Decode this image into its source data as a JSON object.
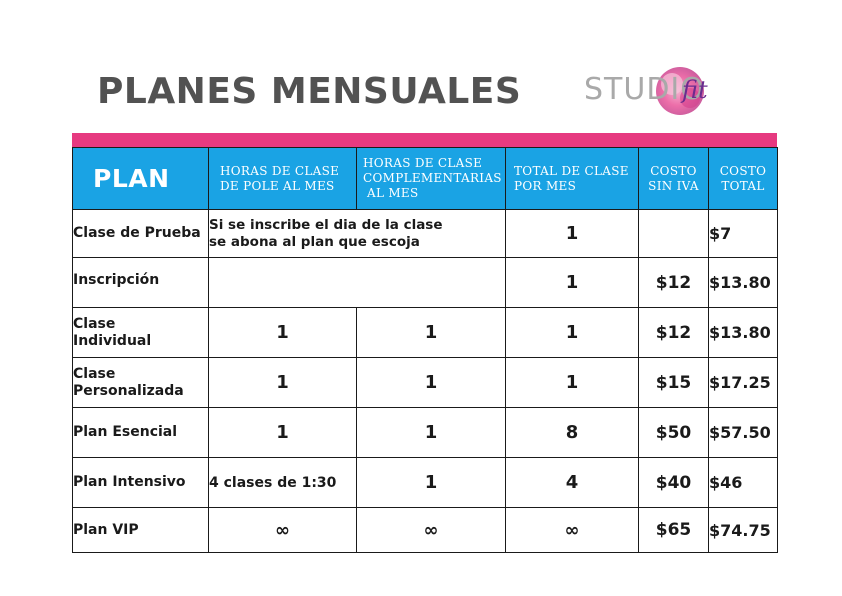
{
  "title": "PLANES MENSUALES",
  "logo": {
    "text": "STUDIO",
    "script": "fit",
    "colors": [
      "#f3a6c8",
      "#e9559a",
      "#7d3fa8"
    ]
  },
  "colors": {
    "accent_bar": "#e63a80",
    "header_bg": "#1aa3e4",
    "header_text": "#ffffff",
    "title": "#525252"
  },
  "table": {
    "headers": {
      "plan": "PLAN",
      "horas_pole": [
        "HORAS DE CLASE",
        "DE POLE AL MES"
      ],
      "horas_comp": [
        "HORAS DE CLASE",
        "COMPLEMENTARIAS",
        "AL MES"
      ],
      "total": [
        "TOTAL DE CLASE",
        "POR MES"
      ],
      "costo": [
        "COSTO",
        "SIN IVA"
      ],
      "costo_total": [
        "COSTO",
        "TOTAL"
      ]
    },
    "rows": [
      {
        "plan": [
          "Clase de Prueba"
        ],
        "note": [
          "Si se inscribe el dia de la clase",
          "se abona al plan que escoja"
        ],
        "total": "1",
        "costo": "",
        "costo_total": "$7"
      },
      {
        "plan": [
          "Inscripción"
        ],
        "horas": "",
        "total": "1",
        "costo": "$12",
        "costo_total": "$13.80"
      },
      {
        "plan": [
          "Clase",
          "Individual"
        ],
        "pole": "1",
        "comp": "1",
        "total": "1",
        "costo": "$12",
        "costo_total": "$13.80"
      },
      {
        "plan": [
          "Clase",
          "Personalizada"
        ],
        "pole": "1",
        "comp": "1",
        "total": "1",
        "costo": "$15",
        "costo_total": "$17.25"
      },
      {
        "plan": [
          "Plan Esencial"
        ],
        "pole": "1",
        "comp": "1",
        "total": "8",
        "costo": "$50",
        "costo_total": "$57.50"
      },
      {
        "plan": [
          "Plan Intensivo"
        ],
        "pole": "4 clases de 1:30",
        "comp": "1",
        "total": "4",
        "costo": "$40",
        "costo_total": "$46"
      },
      {
        "plan": [
          "Plan VIP"
        ],
        "pole": "∞",
        "comp": "∞",
        "total": "∞",
        "costo": "$65",
        "costo_total": "$74.75"
      }
    ]
  }
}
